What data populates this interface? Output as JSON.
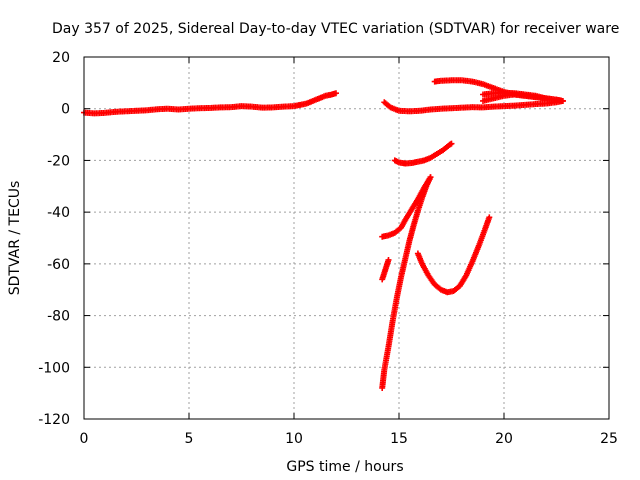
{
  "chart_data": {
    "type": "scatter",
    "title": "Day 357 of 2025, Sidereal Day-to-day VTEC variation (SDTVAR) for receiver ware",
    "xlabel": "GPS time / hours",
    "ylabel": "SDTVAR / TECUs",
    "xlim": [
      0,
      25
    ],
    "ylim": [
      -120,
      20
    ],
    "xticks": [
      0,
      5,
      10,
      15,
      20,
      25
    ],
    "yticks": [
      -120,
      -100,
      -80,
      -60,
      -40,
      -20,
      0,
      20
    ],
    "grid": true,
    "marker": "+",
    "colors": {
      "series": "#ff0000",
      "grid": "#a0a0a0",
      "axis": "#000000"
    },
    "series": [
      {
        "segments": [
          {
            "x": [
              0.0,
              0.5,
              1.0,
              1.5,
              2.0,
              2.5,
              3.0,
              3.5,
              4.0,
              4.5,
              5.0,
              5.5,
              6.0,
              6.5,
              7.0,
              7.5,
              8.0,
              8.5,
              9.0,
              9.5,
              10.0,
              10.3,
              10.6,
              10.9,
              11.2,
              11.5,
              11.8,
              12.0
            ],
            "y": [
              -1.5,
              -1.8,
              -1.6,
              -1.2,
              -1.0,
              -0.8,
              -0.6,
              -0.2,
              0.0,
              -0.3,
              0.0,
              0.2,
              0.3,
              0.5,
              0.6,
              1.0,
              0.8,
              0.4,
              0.5,
              0.8,
              1.0,
              1.5,
              2.0,
              3.0,
              4.0,
              5.0,
              5.5,
              6.0
            ]
          },
          {
            "x": [
              14.3,
              14.6,
              15.0,
              15.5,
              16.0,
              16.5,
              17.0,
              17.5,
              18.0,
              18.5,
              19.0,
              19.5,
              20.0,
              20.5,
              21.0,
              21.5,
              22.0,
              22.5,
              22.8
            ],
            "y": [
              2.5,
              0.5,
              -0.8,
              -1.0,
              -0.8,
              -0.3,
              0.0,
              0.2,
              0.4,
              0.6,
              0.5,
              0.8,
              1.0,
              1.2,
              1.5,
              1.8,
              2.0,
              2.5,
              3.0
            ]
          },
          {
            "x": [
              16.7,
              17.0,
              17.5,
              18.0,
              18.5,
              19.0,
              19.5,
              20.0,
              20.5,
              21.0,
              21.5,
              22.0,
              22.5,
              22.8
            ],
            "y": [
              10.5,
              10.8,
              11.0,
              11.0,
              10.5,
              9.5,
              8.0,
              6.5,
              5.5,
              5.0,
              4.5,
              4.0,
              3.5,
              3.0
            ]
          },
          {
            "x": [
              19.0,
              19.5,
              20.0,
              20.5,
              21.0,
              21.5,
              22.0,
              22.5,
              22.8
            ],
            "y": [
              5.5,
              6.0,
              6.2,
              6.0,
              5.5,
              5.0,
              4.0,
              3.5,
              3.0
            ]
          },
          {
            "x": [
              19.0,
              19.5,
              20.0,
              20.5,
              21.0,
              21.5,
              22.0
            ],
            "y": [
              3.0,
              4.0,
              5.0,
              5.5,
              5.0,
              4.5,
              4.0
            ]
          },
          {
            "x": [
              14.8,
              15.0,
              15.3,
              15.6,
              15.9,
              16.2,
              16.5,
              16.8,
              17.1,
              17.4,
              17.5
            ],
            "y": [
              -20.0,
              -20.8,
              -21.2,
              -21.0,
              -20.5,
              -20.0,
              -19.0,
              -17.5,
              -16.0,
              -14.0,
              -13.5
            ]
          },
          {
            "x": [
              14.2,
              14.5,
              14.8,
              15.1,
              15.3,
              15.6,
              15.9,
              16.2,
              16.5
            ],
            "y": [
              -49.5,
              -49.0,
              -48.0,
              -46.0,
              -43.0,
              -39.0,
              -35.0,
              -30.5,
              -26.5
            ]
          },
          {
            "x": [
              14.2,
              14.3,
              14.4,
              14.5
            ],
            "y": [
              -66.0,
              -63.5,
              -61.0,
              -58.5
            ]
          },
          {
            "x": [
              14.2,
              14.3,
              14.5,
              14.7,
              14.9,
              15.1,
              15.3,
              15.5,
              15.7,
              15.9,
              16.1,
              16.3,
              16.5
            ],
            "y": [
              -108.0,
              -101.0,
              -92.0,
              -82.0,
              -73.0,
              -65.0,
              -58.0,
              -51.0,
              -45.0,
              -39.5,
              -34.5,
              -30.0,
              -26.5
            ]
          },
          {
            "x": [
              15.9,
              16.1,
              16.4,
              16.7,
              17.0,
              17.3,
              17.6,
              17.9,
              18.2,
              18.5,
              18.8,
              19.1,
              19.3
            ],
            "y": [
              -56.0,
              -60.0,
              -64.5,
              -68.0,
              -70.0,
              -71.0,
              -70.5,
              -68.5,
              -64.5,
              -59.0,
              -53.0,
              -46.5,
              -42.0
            ]
          }
        ]
      }
    ]
  }
}
